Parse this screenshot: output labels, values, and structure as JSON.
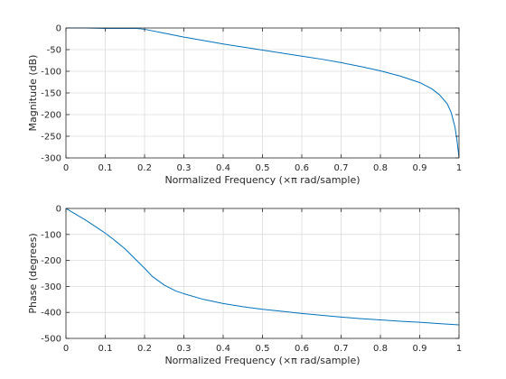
{
  "colors": {
    "line": "#0072BD",
    "grid": "#dcdcdc",
    "axis": "#262626",
    "background": "#ffffff"
  },
  "chart_data": [
    {
      "type": "line",
      "xlabel": "Normalized Frequency  (×π rad/sample)",
      "ylabel": "Magnitude (dB)",
      "xlim": [
        0,
        1
      ],
      "ylim": [
        -300,
        0
      ],
      "xticks": [
        0,
        0.1,
        0.2,
        0.3,
        0.4,
        0.5,
        0.6,
        0.7,
        0.8,
        0.9,
        1
      ],
      "xtick_labels": [
        "0",
        "0.1",
        "0.2",
        "0.3",
        "0.4",
        "0.5",
        "0.6",
        "0.7",
        "0.8",
        "0.9",
        "1"
      ],
      "yticks": [
        0,
        -50,
        -100,
        -150,
        -200,
        -250,
        -300
      ],
      "ytick_labels": [
        "0",
        "-50",
        "-100",
        "-150",
        "-200",
        "-250",
        "-300"
      ],
      "grid": true,
      "series": [
        {
          "x": [
            0,
            0.05,
            0.1,
            0.15,
            0.18,
            0.2,
            0.25,
            0.3,
            0.35,
            0.4,
            0.45,
            0.5,
            0.55,
            0.6,
            0.65,
            0.7,
            0.75,
            0.8,
            0.85,
            0.9,
            0.93,
            0.95,
            0.97,
            0.98,
            0.99,
            0.995,
            1.0
          ],
          "y": [
            0,
            0,
            -1,
            -1,
            -1,
            -3,
            -12,
            -21,
            -29,
            -37,
            -44,
            -51,
            -58,
            -65,
            -72,
            -80,
            -89,
            -99,
            -111,
            -126,
            -140,
            -154,
            -175,
            -195,
            -230,
            -260,
            -300
          ]
        }
      ]
    },
    {
      "type": "line",
      "xlabel": "Normalized Frequency  (×π rad/sample)",
      "ylabel": "Phase (degrees)",
      "xlim": [
        0,
        1
      ],
      "ylim": [
        -500,
        0
      ],
      "xticks": [
        0,
        0.1,
        0.2,
        0.3,
        0.4,
        0.5,
        0.6,
        0.7,
        0.8,
        0.9,
        1
      ],
      "xtick_labels": [
        "0",
        "0.1",
        "0.2",
        "0.3",
        "0.4",
        "0.5",
        "0.6",
        "0.7",
        "0.8",
        "0.9",
        "1"
      ],
      "yticks": [
        0,
        -100,
        -200,
        -300,
        -400,
        -500
      ],
      "ytick_labels": [
        "0",
        "-100",
        "-200",
        "-300",
        "-400",
        "-500"
      ],
      "grid": true,
      "series": [
        {
          "x": [
            0,
            0.02,
            0.05,
            0.08,
            0.1,
            0.12,
            0.15,
            0.18,
            0.2,
            0.22,
            0.25,
            0.28,
            0.3,
            0.35,
            0.4,
            0.45,
            0.5,
            0.55,
            0.6,
            0.65,
            0.7,
            0.75,
            0.8,
            0.85,
            0.9,
            0.95,
            1.0
          ],
          "y": [
            0,
            -18,
            -45,
            -75,
            -95,
            -118,
            -155,
            -200,
            -230,
            -262,
            -295,
            -318,
            -328,
            -350,
            -366,
            -378,
            -388,
            -396,
            -404,
            -411,
            -418,
            -424,
            -429,
            -434,
            -438,
            -443,
            -448
          ]
        }
      ]
    }
  ]
}
